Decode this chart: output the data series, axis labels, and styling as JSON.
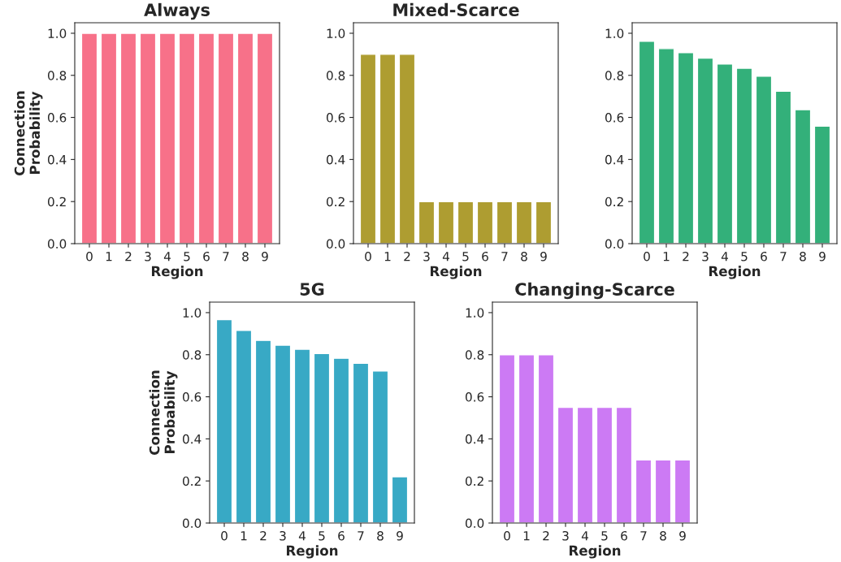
{
  "chart_data": [
    {
      "type": "bar",
      "title": "Always",
      "xlabel": "Region",
      "ylabel": "Connection\nProbability",
      "categories": [
        "0",
        "1",
        "2",
        "3",
        "4",
        "5",
        "6",
        "7",
        "8",
        "9"
      ],
      "values": [
        1,
        1,
        1,
        1,
        1,
        1,
        1,
        1,
        1,
        1
      ],
      "color": "#f77189",
      "ylim": [
        0,
        1.05
      ],
      "yticks": [
        {
          "value": 0,
          "label": "0.0"
        },
        {
          "value": 0.2,
          "label": "0.2"
        },
        {
          "value": 0.4,
          "label": "0.4"
        },
        {
          "value": 0.6,
          "label": "0.6"
        },
        {
          "value": 0.8,
          "label": "0.8"
        },
        {
          "value": 1,
          "label": "1.0"
        }
      ],
      "grid": false,
      "legend": false
    },
    {
      "type": "bar",
      "title": "Mixed-Scarce",
      "xlabel": "Region",
      "categories": [
        "0",
        "1",
        "2",
        "3",
        "4",
        "5",
        "6",
        "7",
        "8",
        "9"
      ],
      "values": [
        0.9,
        0.9,
        0.9,
        0.2,
        0.2,
        0.2,
        0.2,
        0.2,
        0.2,
        0.2
      ],
      "color": "#ae9d31",
      "ylim": [
        0,
        1.05
      ],
      "yticks": [
        {
          "value": 0,
          "label": "0.0"
        },
        {
          "value": 0.2,
          "label": "0.2"
        },
        {
          "value": 0.4,
          "label": "0.4"
        },
        {
          "value": 0.6,
          "label": "0.6"
        },
        {
          "value": 0.8,
          "label": "0.8"
        },
        {
          "value": 1,
          "label": "1.0"
        }
      ],
      "grid": false,
      "legend": false
    },
    {
      "type": "bar",
      "xlabel": "Region",
      "categories": [
        "0",
        "1",
        "2",
        "3",
        "4",
        "5",
        "6",
        "7",
        "8",
        "9"
      ],
      "values": [
        0.962,
        0.927,
        0.908,
        0.882,
        0.854,
        0.834,
        0.796,
        0.725,
        0.637,
        0.559
      ],
      "color": "#33b07a",
      "ylim": [
        0,
        1.05
      ],
      "yticks": [
        {
          "value": 0,
          "label": "0.0"
        },
        {
          "value": 0.2,
          "label": "0.2"
        },
        {
          "value": 0.4,
          "label": "0.4"
        },
        {
          "value": 0.6,
          "label": "0.6"
        },
        {
          "value": 0.8,
          "label": "0.8"
        },
        {
          "value": 1,
          "label": "1.0"
        }
      ],
      "grid": false,
      "legend": false
    },
    {
      "type": "bar",
      "title": "5G",
      "xlabel": "Region",
      "ylabel": "Connection\nProbability",
      "categories": [
        "0",
        "1",
        "2",
        "3",
        "4",
        "5",
        "6",
        "7",
        "8",
        "9"
      ],
      "values": [
        0.967,
        0.916,
        0.868,
        0.845,
        0.826,
        0.806,
        0.783,
        0.759,
        0.723,
        0.22
      ],
      "color": "#38a9c5",
      "ylim": [
        0,
        1.05
      ],
      "yticks": [
        {
          "value": 0,
          "label": "0.0"
        },
        {
          "value": 0.2,
          "label": "0.2"
        },
        {
          "value": 0.4,
          "label": "0.4"
        },
        {
          "value": 0.6,
          "label": "0.6"
        },
        {
          "value": 0.8,
          "label": "0.8"
        },
        {
          "value": 1,
          "label": "1.0"
        }
      ],
      "grid": false,
      "legend": false
    },
    {
      "type": "bar",
      "title": "Changing-Scarce",
      "xlabel": "Region",
      "categories": [
        "0",
        "1",
        "2",
        "3",
        "4",
        "5",
        "6",
        "7",
        "8",
        "9"
      ],
      "values": [
        0.8,
        0.8,
        0.8,
        0.55,
        0.55,
        0.55,
        0.55,
        0.3,
        0.3,
        0.3
      ],
      "color": "#cc7af4",
      "ylim": [
        0,
        1.05
      ],
      "yticks": [
        {
          "value": 0,
          "label": "0.0"
        },
        {
          "value": 0.2,
          "label": "0.2"
        },
        {
          "value": 0.4,
          "label": "0.4"
        },
        {
          "value": 0.6,
          "label": "0.6"
        },
        {
          "value": 0.8,
          "label": "0.8"
        },
        {
          "value": 1,
          "label": "1.0"
        }
      ],
      "grid": false,
      "legend": false
    }
  ]
}
